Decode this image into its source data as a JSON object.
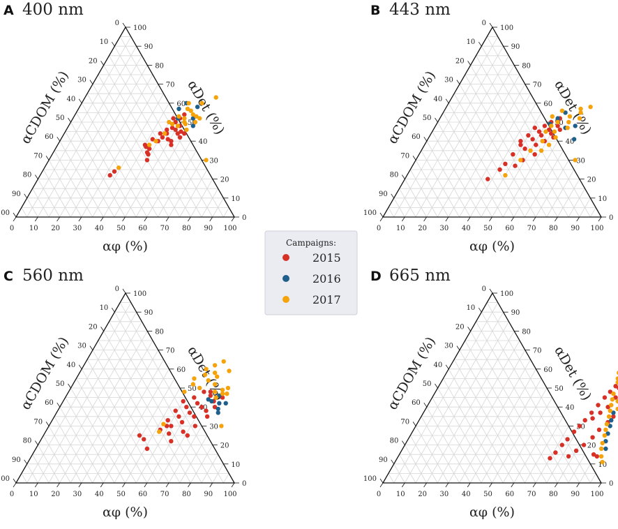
{
  "legend": {
    "title": "Campaigns:",
    "entries": [
      {
        "label": "2015",
        "color": "#d73027"
      },
      {
        "label": "2016",
        "color": "#1f5f8b"
      },
      {
        "label": "2017",
        "color": "#f5a30a"
      }
    ]
  },
  "chart_data": [
    {
      "type": "scatter",
      "subtype": "ternary",
      "panel": "A",
      "title": "400 nm",
      "axes": {
        "bottom": "αφ (%)",
        "left": "αCDOM (%)",
        "right": "αDet (%)"
      },
      "ticks": [
        0,
        10,
        20,
        30,
        40,
        50,
        60,
        70,
        80,
        90,
        100
      ],
      "series": [
        {
          "name": "2015",
          "points": [
            {
              "phi": 32,
              "det": 22
            },
            {
              "phi": 33,
              "det": 24
            },
            {
              "phi": 40,
              "det": 38
            },
            {
              "phi": 41,
              "det": 37
            },
            {
              "phi": 42,
              "det": 41
            },
            {
              "phi": 43,
              "det": 36
            },
            {
              "phi": 43,
              "det": 34
            },
            {
              "phi": 44,
              "det": 33
            },
            {
              "phi": 45,
              "det": 30
            },
            {
              "phi": 45,
              "det": 40
            },
            {
              "phi": 46,
              "det": 42
            },
            {
              "phi": 46,
              "det": 46
            },
            {
              "phi": 47,
              "det": 44
            },
            {
              "phi": 48,
              "det": 47
            },
            {
              "phi": 48,
              "det": 50
            },
            {
              "phi": 49,
              "det": 41
            },
            {
              "phi": 49,
              "det": 52
            },
            {
              "phi": 50,
              "det": 46
            },
            {
              "phi": 50,
              "det": 54
            },
            {
              "phi": 51,
              "det": 48
            },
            {
              "phi": 51,
              "det": 40
            },
            {
              "phi": 52,
              "det": 44
            },
            {
              "phi": 52,
              "det": 38
            },
            {
              "phi": 53,
              "det": 45
            },
            {
              "phi": 54,
              "det": 42
            },
            {
              "phi": 55,
              "det": 44
            },
            {
              "phi": 46,
              "det": 52
            },
            {
              "phi": 44,
              "det": 44
            }
          ]
        },
        {
          "name": "2016",
          "points": [
            {
              "phi": 46,
              "det": 57
            },
            {
              "phi": 48,
              "det": 60
            },
            {
              "phi": 54,
              "det": 58
            },
            {
              "phi": 55,
              "det": 52
            },
            {
              "phi": 57,
              "det": 48
            },
            {
              "phi": 48,
              "det": 52
            }
          ]
        },
        {
          "name": "2017",
          "points": [
            {
              "phi": 34,
              "det": 26
            },
            {
              "phi": 42,
              "det": 38
            },
            {
              "phi": 44,
              "det": 40
            },
            {
              "phi": 45,
              "det": 50
            },
            {
              "phi": 47,
              "det": 49
            },
            {
              "phi": 48,
              "det": 53
            },
            {
              "phi": 49,
              "det": 60
            },
            {
              "phi": 50,
              "det": 48
            },
            {
              "phi": 50,
              "det": 57
            },
            {
              "phi": 51,
              "det": 52
            },
            {
              "phi": 52,
              "det": 50
            },
            {
              "phi": 52,
              "det": 56
            },
            {
              "phi": 53,
              "det": 49
            },
            {
              "phi": 54,
              "det": 54
            },
            {
              "phi": 55,
              "det": 46
            },
            {
              "phi": 56,
              "det": 53
            },
            {
              "phi": 57,
              "det": 50
            },
            {
              "phi": 58,
              "det": 52
            },
            {
              "phi": 60,
              "det": 63
            },
            {
              "phi": 55,
              "det": 60
            },
            {
              "phi": 72,
              "det": 30
            },
            {
              "phi": 46,
              "det": 44
            }
          ]
        }
      ]
    },
    {
      "type": "scatter",
      "subtype": "ternary",
      "panel": "B",
      "title": "443 nm",
      "axes": {
        "bottom": "αφ (%)",
        "left": "αCDOM (%)",
        "right": "αDet (%)"
      },
      "ticks": [
        0,
        10,
        20,
        30,
        40,
        50,
        60,
        70,
        80,
        90,
        100
      ],
      "series": [
        {
          "name": "2015",
          "points": [
            {
              "phi": 38,
              "det": 20
            },
            {
              "phi": 41,
              "det": 25
            },
            {
              "phi": 42,
              "det": 28
            },
            {
              "phi": 43,
              "det": 33
            },
            {
              "phi": 43,
              "det": 40
            },
            {
              "phi": 44,
              "det": 38
            },
            {
              "phi": 45,
              "det": 43
            },
            {
              "phi": 46,
              "det": 47
            },
            {
              "phi": 47,
              "det": 36
            },
            {
              "phi": 48,
              "det": 41
            },
            {
              "phi": 49,
              "det": 45
            },
            {
              "phi": 50,
              "det": 48
            },
            {
              "phi": 51,
              "det": 38
            },
            {
              "phi": 51,
              "det": 43
            },
            {
              "phi": 52,
              "det": 50
            },
            {
              "phi": 53,
              "det": 46
            },
            {
              "phi": 54,
              "det": 40
            },
            {
              "phi": 55,
              "det": 44
            },
            {
              "phi": 56,
              "det": 48
            },
            {
              "phi": 57,
              "det": 42
            },
            {
              "phi": 53,
              "det": 33
            },
            {
              "phi": 49,
              "det": 30
            },
            {
              "phi": 47,
              "det": 27
            },
            {
              "phi": 55,
              "det": 52
            },
            {
              "phi": 58,
              "det": 46
            }
          ]
        },
        {
          "name": "2016",
          "points": [
            {
              "phi": 52,
              "det": 49
            },
            {
              "phi": 56,
              "det": 55
            },
            {
              "phi": 60,
              "det": 47
            },
            {
              "phi": 64,
              "det": 48
            },
            {
              "phi": 67,
              "det": 41
            },
            {
              "phi": 54,
              "det": 52
            }
          ]
        },
        {
          "name": "2017",
          "points": [
            {
              "phi": 45,
              "det": 22
            },
            {
              "phi": 48,
              "det": 30
            },
            {
              "phi": 50,
              "det": 35
            },
            {
              "phi": 51,
              "det": 53
            },
            {
              "phi": 52,
              "det": 45
            },
            {
              "phi": 53,
              "det": 40
            },
            {
              "phi": 54,
              "det": 56
            },
            {
              "phi": 55,
              "det": 50
            },
            {
              "phi": 56,
              "det": 45
            },
            {
              "phi": 57,
              "det": 38
            },
            {
              "phi": 58,
              "det": 42
            },
            {
              "phi": 59,
              "det": 53
            },
            {
              "phi": 60,
              "det": 50
            },
            {
              "phi": 61,
              "det": 47
            },
            {
              "phi": 62,
              "det": 57
            },
            {
              "phi": 63,
              "det": 55
            },
            {
              "phi": 64,
              "det": 52
            },
            {
              "phi": 66,
              "det": 58
            },
            {
              "phi": 73,
              "det": 30
            },
            {
              "phi": 55,
              "det": 35
            },
            {
              "phi": 53,
              "det": 48
            }
          ]
        }
      ]
    },
    {
      "type": "scatter",
      "subtype": "ternary",
      "panel": "C",
      "title": "560 nm",
      "axes": {
        "bottom": "αφ (%)",
        "left": "αCDOM (%)",
        "right": "αDet (%)"
      },
      "ticks": [
        0,
        10,
        20,
        30,
        40,
        50,
        60,
        70,
        80,
        90,
        100
      ],
      "series": [
        {
          "name": "2015",
          "points": [
            {
              "phi": 44,
              "det": 25
            },
            {
              "phi": 47,
              "det": 23
            },
            {
              "phi": 51,
              "det": 18
            },
            {
              "phi": 52,
              "det": 28
            },
            {
              "phi": 53,
              "det": 33
            },
            {
              "phi": 54,
              "det": 38
            },
            {
              "phi": 55,
              "det": 43
            },
            {
              "phi": 56,
              "det": 30
            },
            {
              "phi": 57,
              "det": 35
            },
            {
              "phi": 58,
              "det": 40
            },
            {
              "phi": 59,
              "det": 45
            },
            {
              "phi": 60,
              "det": 32
            },
            {
              "phi": 61,
              "det": 37
            },
            {
              "phi": 62,
              "det": 42
            },
            {
              "phi": 63,
              "det": 27
            },
            {
              "phi": 64,
              "det": 35
            },
            {
              "phi": 65,
              "det": 40
            },
            {
              "phi": 66,
              "det": 46
            },
            {
              "phi": 67,
              "det": 30
            },
            {
              "phi": 68,
              "det": 38
            },
            {
              "phi": 69,
              "det": 43
            },
            {
              "phi": 70,
              "det": 35
            },
            {
              "phi": 71,
              "det": 40
            },
            {
              "phi": 72,
              "det": 45
            },
            {
              "phi": 65,
              "det": 48
            },
            {
              "phi": 62,
              "det": 48
            },
            {
              "phi": 60,
              "det": 22
            },
            {
              "phi": 57,
              "det": 26
            },
            {
              "phi": 66,
              "det": 25
            },
            {
              "phi": 54,
              "det": 30
            }
          ]
        },
        {
          "name": "2016",
          "points": [
            {
              "phi": 66,
              "det": 44
            },
            {
              "phi": 70,
              "det": 46
            },
            {
              "phi": 72,
              "det": 42
            },
            {
              "phi": 74,
              "det": 37
            },
            {
              "phi": 75,
              "det": 42
            },
            {
              "phi": 68,
              "det": 43
            },
            {
              "phi": 73,
              "det": 39
            }
          ]
        },
        {
          "name": "2017",
          "points": [
            {
              "phi": 52,
              "det": 27
            },
            {
              "phi": 53,
              "det": 48
            },
            {
              "phi": 54,
              "det": 55
            },
            {
              "phi": 55,
              "det": 52
            },
            {
              "phi": 57,
              "det": 60
            },
            {
              "phi": 58,
              "det": 57
            },
            {
              "phi": 59,
              "det": 50
            },
            {
              "phi": 60,
              "det": 62
            },
            {
              "phi": 61,
              "det": 54
            },
            {
              "phi": 62,
              "det": 58
            },
            {
              "phi": 63,
              "det": 64
            },
            {
              "phi": 64,
              "det": 56
            },
            {
              "phi": 65,
              "det": 52
            },
            {
              "phi": 67,
              "det": 48
            },
            {
              "phi": 68,
              "det": 59
            },
            {
              "phi": 69,
              "det": 45
            },
            {
              "phi": 70,
              "det": 49
            },
            {
              "phi": 71,
              "det": 47
            },
            {
              "phi": 72,
              "det": 50
            },
            {
              "phi": 73,
              "det": 47
            },
            {
              "phi": 79,
              "det": 30
            },
            {
              "phi": 52,
              "det": 31
            }
          ]
        }
      ]
    },
    {
      "type": "scatter",
      "subtype": "ternary",
      "panel": "D",
      "title": "665 nm",
      "axes": {
        "bottom": "αφ (%)",
        "left": "αCDOM (%)",
        "right": "αDet (%)"
      },
      "ticks": [
        0,
        10,
        20,
        30,
        40,
        50,
        60,
        70,
        80,
        90,
        100
      ],
      "series": [
        {
          "name": "2015",
          "points": [
            {
              "phi": 70,
              "det": 13
            },
            {
              "phi": 71,
              "det": 16
            },
            {
              "phi": 72,
              "det": 20
            },
            {
              "phi": 73,
              "det": 23
            },
            {
              "phi": 74,
              "det": 27
            },
            {
              "phi": 75,
              "det": 30
            },
            {
              "phi": 76,
              "det": 33
            },
            {
              "phi": 77,
              "det": 37
            },
            {
              "phi": 78,
              "det": 41
            },
            {
              "phi": 79,
              "det": 45
            },
            {
              "phi": 80,
              "det": 48
            },
            {
              "phi": 81,
              "det": 51
            },
            {
              "phi": 82,
              "det": 54
            },
            {
              "phi": 83,
              "det": 50
            },
            {
              "phi": 80,
              "det": 17
            },
            {
              "phi": 82,
              "det": 20
            },
            {
              "phi": 84,
              "det": 24
            },
            {
              "phi": 85,
              "det": 28
            },
            {
              "phi": 87,
              "det": 32
            },
            {
              "phi": 88,
              "det": 35
            },
            {
              "phi": 78,
              "det": 14
            },
            {
              "phi": 89,
              "det": 15
            },
            {
              "phi": 91,
              "det": 14
            },
            {
              "phi": 83,
              "det": 40
            },
            {
              "phi": 81,
              "det": 37
            },
            {
              "phi": 79,
              "det": 34
            },
            {
              "phi": 84,
              "det": 45
            },
            {
              "phi": 86,
              "det": 47
            }
          ]
        },
        {
          "name": "2016",
          "points": [
            {
              "phi": 88,
              "det": 33
            },
            {
              "phi": 89,
              "det": 30
            },
            {
              "phi": 90,
              "det": 26
            },
            {
              "phi": 91,
              "det": 22
            },
            {
              "phi": 93,
              "det": 18
            },
            {
              "phi": 87,
              "det": 37
            }
          ]
        },
        {
          "name": "2017",
          "points": [
            {
              "phi": 79,
              "det": 58
            },
            {
              "phi": 80,
              "det": 55
            },
            {
              "phi": 81,
              "det": 53
            },
            {
              "phi": 82,
              "det": 47
            },
            {
              "phi": 83,
              "det": 44
            },
            {
              "phi": 84,
              "det": 41
            },
            {
              "phi": 85,
              "det": 38
            },
            {
              "phi": 86,
              "det": 35
            },
            {
              "phi": 87,
              "det": 31
            },
            {
              "phi": 88,
              "det": 28
            },
            {
              "phi": 89,
              "det": 25
            },
            {
              "phi": 90,
              "det": 21
            },
            {
              "phi": 91,
              "det": 18
            },
            {
              "phi": 93,
              "det": 14
            },
            {
              "phi": 95,
              "det": 11
            },
            {
              "phi": 85,
              "det": 50
            },
            {
              "phi": 86,
              "det": 43
            },
            {
              "phi": 88,
              "det": 39
            }
          ]
        }
      ]
    }
  ]
}
